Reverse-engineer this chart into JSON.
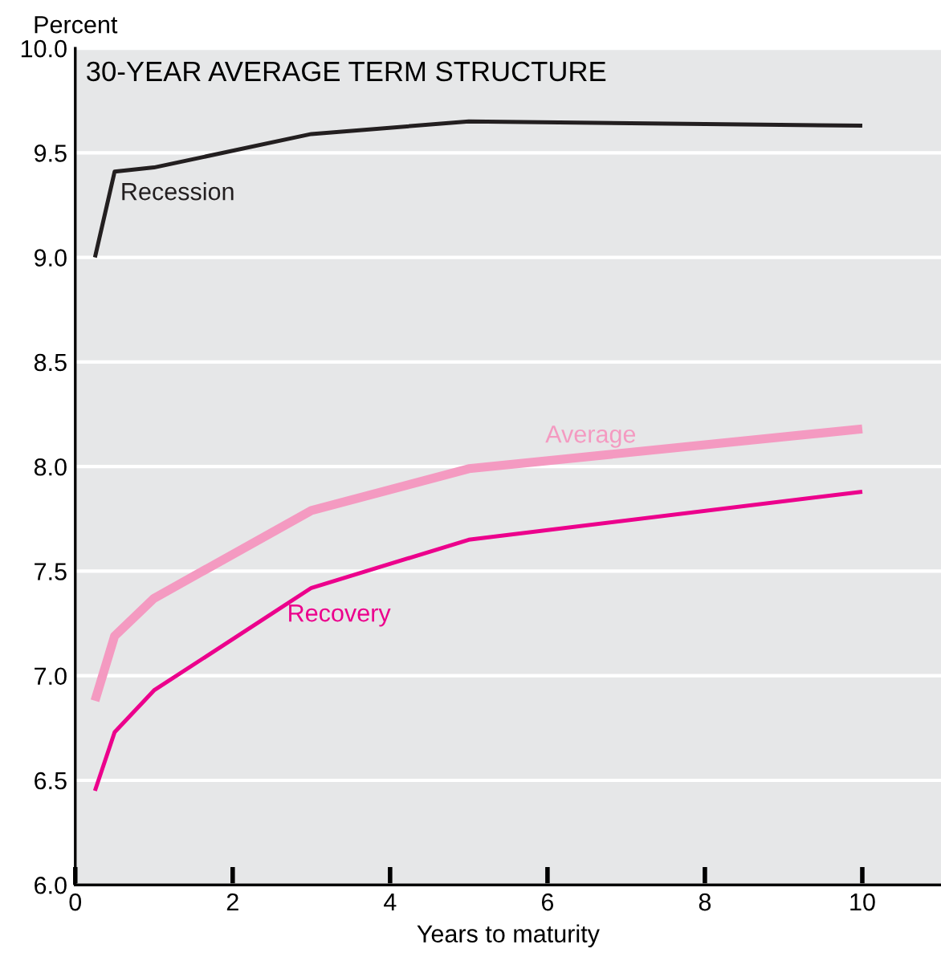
{
  "chart_data": {
    "type": "line",
    "title": "30-YEAR AVERAGE TERM STRUCTURE",
    "xlabel": "Years to maturity",
    "ylabel": "Percent",
    "x": [
      0.25,
      0.5,
      1,
      3,
      5,
      10
    ],
    "series": [
      {
        "name": "Recession",
        "color": "#231f20",
        "values": [
          9.0,
          9.41,
          9.43,
          9.59,
          9.65,
          9.63
        ]
      },
      {
        "name": "Average",
        "color": "#f49ac1",
        "values": [
          6.88,
          7.19,
          7.37,
          7.79,
          7.99,
          8.18
        ]
      },
      {
        "name": "Recovery",
        "color": "#ec008c",
        "values": [
          6.45,
          6.73,
          6.93,
          7.42,
          7.65,
          7.88
        ]
      }
    ],
    "xlim": [
      0,
      11
    ],
    "ylim": [
      6.0,
      10.0
    ],
    "xticks": [
      0,
      2,
      4,
      6,
      8,
      10
    ],
    "yticks": [
      {
        "value": 6,
        "label": "6.0"
      },
      {
        "value": 6.5,
        "label": "6.5"
      },
      {
        "value": 7,
        "label": "7.0"
      },
      {
        "value": 7.5,
        "label": "7.5"
      },
      {
        "value": 8,
        "label": "8.0"
      },
      {
        "value": 8.5,
        "label": "8.5"
      },
      {
        "value": 9,
        "label": "9.0"
      },
      {
        "value": 9.5,
        "label": "9.5"
      },
      {
        "value": 10,
        "label": "10.0"
      }
    ],
    "grid": "y",
    "legend": false,
    "marker": "none",
    "line_style": "solid"
  }
}
